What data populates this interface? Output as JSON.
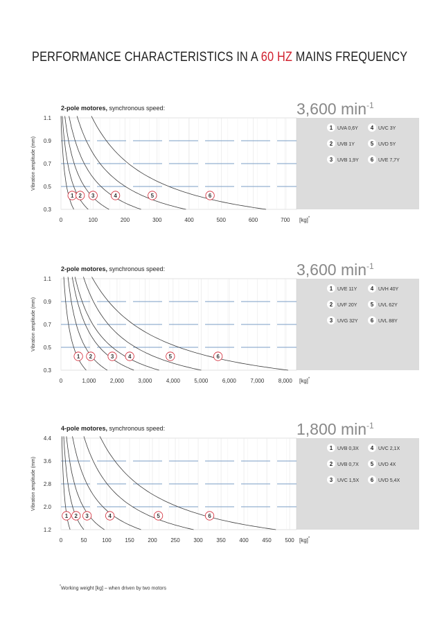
{
  "title": {
    "prefix": "PERFORMANCE CHARACTERISTICS IN A ",
    "accent": "60 HZ",
    "suffix": " MAINS FREQUENCY"
  },
  "colors": {
    "accent": "#d0202e",
    "curve": "#3a3a3a",
    "dashed_line": "#7a9cc6",
    "legend_bg": "#dcdcdc",
    "grid": "#e3e3e3"
  },
  "footnote": {
    "marker": "*",
    "text": "Working weight [kg] – when driven by two motors"
  },
  "chart_data": [
    {
      "type": "line",
      "heading_bold": "2-pole motores,",
      "heading_rest": " synchronous speed:",
      "speed": "3,600 min",
      "speed_exp": "-1",
      "ylabel": "Vibration amplitude (mm)",
      "xlabel": "[kg]",
      "xlabel_sup": "*",
      "xlim": [
        0,
        735
      ],
      "ylim": [
        0.3,
        1.1
      ],
      "xticks": [
        0,
        100,
        200,
        300,
        400,
        500,
        600,
        700
      ],
      "xtick_labels": [
        "0",
        "100",
        "200",
        "300",
        "400",
        "500",
        "600",
        "700"
      ],
      "yticks": [
        0.3,
        0.5,
        0.7,
        0.9,
        1.1
      ],
      "ytick_labels": [
        "0.3",
        "0.5",
        "0.7",
        "0.9",
        "1.1"
      ],
      "dashed_levels": [
        0.9,
        0.7,
        0.5
      ],
      "series": [
        {
          "name": "1",
          "model": "UVA 0,6Y",
          "x_start": 0,
          "x_end": 40,
          "label_x": 35
        },
        {
          "name": "2",
          "model": "UVB 1Y",
          "x_start": 4,
          "x_end": 85,
          "label_x": 60
        },
        {
          "name": "3",
          "model": "UVB 1,9Y",
          "x_start": 12,
          "x_end": 150,
          "label_x": 100
        },
        {
          "name": "4",
          "model": "UVC 3Y",
          "x_start": 25,
          "x_end": 250,
          "label_x": 170
        },
        {
          "name": "5",
          "model": "UVD 5Y",
          "x_start": 50,
          "x_end": 390,
          "label_x": 285
        },
        {
          "name": "6",
          "model": "UVE 7,7Y",
          "x_start": 95,
          "x_end": 640,
          "label_x": 465
        }
      ],
      "legend_rows": [
        [
          "1",
          "UVA 0,6Y",
          "4",
          "UVC",
          "3Y"
        ],
        [
          "2",
          "UVB",
          "1Y",
          "5",
          "UVD",
          "5Y"
        ],
        [
          "3",
          "UVB 1,9Y",
          "6",
          "UVE 7,7Y"
        ]
      ]
    },
    {
      "type": "line",
      "heading_bold": "2-pole motores,",
      "heading_rest": " synchronous speed:",
      "speed": "3,600 min",
      "speed_exp": "-1",
      "ylabel": "Vibration amplitude (mm)",
      "xlabel": "[kg]",
      "xlabel_sup": "*",
      "xlim": [
        0,
        8400
      ],
      "ylim": [
        0.3,
        1.1
      ],
      "xticks": [
        0,
        1000,
        2000,
        3000,
        4000,
        5000,
        6000,
        7000,
        8000
      ],
      "xtick_labels": [
        "0",
        "1,000",
        "2,000",
        "3,000",
        "4,000",
        "5,000",
        "6,000",
        "7,000",
        "8,000"
      ],
      "yticks": [
        0.3,
        0.5,
        0.7,
        0.9,
        1.1
      ],
      "ytick_labels": [
        "0.3",
        "0.5",
        "0.7",
        "0.9",
        "1.1"
      ],
      "dashed_levels": [
        0.9,
        0.7,
        0.5
      ],
      "series": [
        {
          "name": "1",
          "model": "UVE 11Y",
          "x_start": 100,
          "x_end": 900,
          "label_x": 620
        },
        {
          "name": "2",
          "model": "UVF 20Y",
          "x_start": 250,
          "x_end": 1650,
          "label_x": 1060
        },
        {
          "name": "3",
          "model": "UVG 32Y",
          "x_start": 400,
          "x_end": 2600,
          "label_x": 1830
        },
        {
          "name": "4",
          "model": "UVH 40Y",
          "x_start": 500,
          "x_end": 3500,
          "label_x": 2450
        },
        {
          "name": "5",
          "model": "UVL 62Y",
          "x_start": 800,
          "x_end": 5000,
          "label_x": 3900
        },
        {
          "name": "6",
          "model": "UVL 88Y",
          "x_start": 1100,
          "x_end": 8100,
          "label_x": 5600
        }
      ],
      "legend_rows": [
        [
          "1",
          "UVE",
          "11Y",
          "4",
          "UVH",
          "40Y"
        ],
        [
          "2",
          "UVF",
          "20Y",
          "5",
          "UVL",
          "62Y"
        ],
        [
          "3",
          "UVG",
          "32Y",
          "6",
          "UVL",
          "88Y"
        ]
      ]
    },
    {
      "type": "line",
      "heading_bold": "4-pole motores,",
      "heading_rest": " synchronous speed:",
      "speed": "1,800 min",
      "speed_exp": "-1",
      "ylabel": "Vibration amplitude (mm)",
      "xlabel": "[kg]",
      "xlabel_sup": "*",
      "xlim": [
        0,
        515
      ],
      "ylim": [
        1.2,
        4.4
      ],
      "xticks": [
        0,
        50,
        100,
        150,
        200,
        250,
        300,
        350,
        400,
        450,
        500
      ],
      "xtick_labels": [
        "0",
        "50",
        "100",
        "150",
        "200",
        "250",
        "300",
        "350",
        "400",
        "450",
        "500"
      ],
      "yticks": [
        1.2,
        2.0,
        2.8,
        3.6,
        4.4
      ],
      "ytick_labels": [
        "1.2",
        "2.0",
        "2.8",
        "3.6",
        "4.4"
      ],
      "dashed_levels": [
        3.6,
        2.8,
        2.0
      ],
      "series": [
        {
          "name": "1",
          "model": "UVB 0,3X",
          "x_start": 2,
          "x_end": 20,
          "label_x": 12
        },
        {
          "name": "2",
          "model": "UVB 0,7X",
          "x_start": 6,
          "x_end": 50,
          "label_x": 33
        },
        {
          "name": "3",
          "model": "UVC 1,5X",
          "x_start": 12,
          "x_end": 95,
          "label_x": 57
        },
        {
          "name": "4",
          "model": "UVC 2,1X",
          "x_start": 25,
          "x_end": 175,
          "label_x": 107
        },
        {
          "name": "5",
          "model": "UVD 4X",
          "x_start": 50,
          "x_end": 290,
          "label_x": 213
        },
        {
          "name": "6",
          "model": "UVD 5,4X",
          "x_start": 85,
          "x_end": 470,
          "label_x": 325
        }
      ],
      "legend_rows": [
        [
          "1",
          "UVB 0,3X",
          "4",
          "UVC 2,1X"
        ],
        [
          "2",
          "UVB 0,7X",
          "5",
          "UVD",
          "4X"
        ],
        [
          "3",
          "UVC 1,5X",
          "6",
          "UVD 5,4X"
        ]
      ]
    }
  ]
}
